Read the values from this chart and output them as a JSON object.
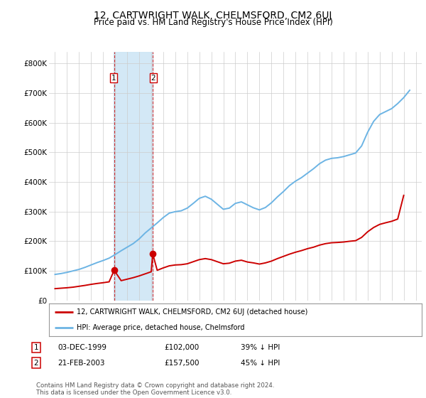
{
  "title": "12, CARTWRIGHT WALK, CHELMSFORD, CM2 6UJ",
  "subtitle": "Price paid vs. HM Land Registry's House Price Index (HPI)",
  "title_fontsize": 10,
  "subtitle_fontsize": 8.5,
  "bg_color": "#ffffff",
  "plot_bg_color": "#ffffff",
  "grid_color": "#cccccc",
  "red_color": "#cc0000",
  "blue_color": "#6cb4e4",
  "shade_color": "#cce5f5",
  "shade_xmin": 1999.88,
  "shade_xmax": 2003.15,
  "transactions": [
    {
      "year": 1999.92,
      "price": 102000,
      "label": "1"
    },
    {
      "year": 2003.13,
      "price": 157500,
      "label": "2"
    }
  ],
  "hpi_years": [
    1995,
    1995.5,
    1996,
    1996.5,
    1997,
    1997.5,
    1998,
    1998.5,
    1999,
    1999.5,
    2000,
    2000.5,
    2001,
    2001.5,
    2002,
    2002.5,
    2003,
    2003.5,
    2004,
    2004.5,
    2005,
    2005.5,
    2006,
    2006.5,
    2007,
    2007.5,
    2008,
    2008.5,
    2009,
    2009.5,
    2010,
    2010.5,
    2011,
    2011.5,
    2012,
    2012.5,
    2013,
    2013.5,
    2014,
    2014.5,
    2015,
    2015.5,
    2016,
    2016.5,
    2017,
    2017.5,
    2018,
    2018.5,
    2019,
    2019.5,
    2020,
    2020.5,
    2021,
    2021.5,
    2022,
    2022.5,
    2023,
    2023.5,
    2024,
    2024.5
  ],
  "hpi_values": [
    88000,
    91000,
    95000,
    100000,
    105000,
    112000,
    120000,
    128000,
    135000,
    143000,
    155000,
    168000,
    180000,
    192000,
    208000,
    228000,
    245000,
    262000,
    280000,
    295000,
    300000,
    303000,
    312000,
    328000,
    345000,
    352000,
    342000,
    325000,
    308000,
    312000,
    328000,
    333000,
    323000,
    313000,
    306000,
    314000,
    330000,
    350000,
    368000,
    388000,
    403000,
    415000,
    430000,
    445000,
    462000,
    474000,
    480000,
    482000,
    486000,
    492000,
    498000,
    522000,
    568000,
    605000,
    628000,
    638000,
    648000,
    665000,
    685000,
    710000
  ],
  "red_years": [
    1995,
    1995.5,
    1996,
    1996.5,
    1997,
    1997.5,
    1998,
    1998.5,
    1999,
    1999.5,
    1999.92,
    2000.5,
    2001,
    2001.5,
    2002,
    2002.5,
    2003,
    2003.13,
    2003.5,
    2004,
    2004.5,
    2005,
    2005.5,
    2006,
    2006.5,
    2007,
    2007.5,
    2008,
    2008.5,
    2009,
    2009.5,
    2010,
    2010.5,
    2011,
    2011.5,
    2012,
    2012.5,
    2013,
    2013.5,
    2014,
    2014.5,
    2015,
    2015.5,
    2016,
    2016.5,
    2017,
    2017.5,
    2018,
    2018.5,
    2019,
    2019.5,
    2020,
    2020.5,
    2021,
    2021.5,
    2022,
    2022.5,
    2023,
    2023.5,
    2024
  ],
  "red_values": [
    40000,
    41500,
    43000,
    45000,
    48000,
    51000,
    54500,
    57500,
    60000,
    63000,
    102000,
    67000,
    72000,
    77000,
    83000,
    90000,
    97000,
    157500,
    102000,
    110000,
    117000,
    120000,
    121000,
    124000,
    131000,
    138000,
    141500,
    138000,
    131000,
    124000,
    126000,
    133000,
    136000,
    130000,
    127000,
    123000,
    127000,
    133000,
    141500,
    149000,
    156500,
    163000,
    168500,
    175000,
    180000,
    187000,
    192000,
    195000,
    196000,
    197500,
    200000,
    202000,
    213000,
    232000,
    246500,
    257000,
    262500,
    267500,
    275000,
    355000
  ],
  "xlim": [
    1994.5,
    2025.5
  ],
  "ylim": [
    0,
    840000
  ],
  "yticks": [
    0,
    100000,
    200000,
    300000,
    400000,
    500000,
    600000,
    700000,
    800000
  ],
  "ytick_labels": [
    "£0",
    "£100K",
    "£200K",
    "£300K",
    "£400K",
    "£500K",
    "£600K",
    "£700K",
    "£800K"
  ],
  "xticks": [
    1995,
    1996,
    1997,
    1998,
    1999,
    2000,
    2001,
    2002,
    2003,
    2004,
    2005,
    2006,
    2007,
    2008,
    2009,
    2010,
    2011,
    2012,
    2013,
    2014,
    2015,
    2016,
    2017,
    2018,
    2019,
    2020,
    2021,
    2022,
    2023,
    2024,
    2025
  ],
  "legend_red_label": "12, CARTWRIGHT WALK, CHELMSFORD, CM2 6UJ (detached house)",
  "legend_blue_label": "HPI: Average price, detached house, Chelmsford",
  "footer_text": "Contains HM Land Registry data © Crown copyright and database right 2024.\nThis data is licensed under the Open Government Licence v3.0.",
  "table_rows": [
    {
      "num": "1",
      "date": "03-DEC-1999",
      "price": "£102,000",
      "hpi": "39% ↓ HPI"
    },
    {
      "num": "2",
      "date": "21-FEB-2003",
      "price": "£157,500",
      "hpi": "45% ↓ HPI"
    }
  ]
}
